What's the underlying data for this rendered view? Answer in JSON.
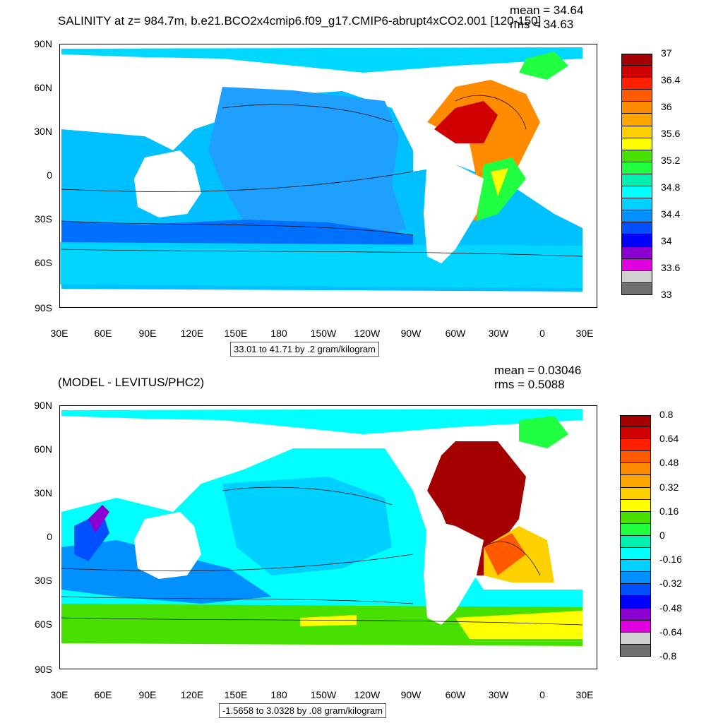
{
  "top": {
    "title": "SALINITY at z= 984.7m, b.e21.BCO2x4cmip6.f09_g17.CMIP6-abrupt4xCO2.001 [120-150]",
    "mean": "mean = 34.64",
    "rms": "rms = 34.63",
    "range": "33.01 to 41.71 by .2 gram/kilogram",
    "colorbar": {
      "colors": [
        "#a50000",
        "#d00000",
        "#ff2000",
        "#ff5a00",
        "#ff8c00",
        "#ffa500",
        "#ffd000",
        "#ffff00",
        "#48e000",
        "#20ff40",
        "#00f0b0",
        "#00ffff",
        "#00d0ff",
        "#0090ff",
        "#0050ff",
        "#0000ff",
        "#8b00d0",
        "#e000e0",
        "#d0d0d0",
        "#707070"
      ],
      "labels": [
        "37",
        "36.4",
        "36",
        "35.6",
        "35.2",
        "34.8",
        "34.4",
        "34",
        "33.6",
        "33"
      ]
    }
  },
  "bottom": {
    "title": "(MODEL - LEVITUS/PHC2)",
    "mean": "mean = 0.03046",
    "rms": "rms = 0.5088",
    "range": "-1.5658 to 3.0328 by .08 gram/kilogram",
    "colorbar": {
      "colors": [
        "#a50000",
        "#d00000",
        "#ff2000",
        "#ff5a00",
        "#ff8c00",
        "#ffa500",
        "#ffd000",
        "#ffff00",
        "#48e000",
        "#20ff40",
        "#00f0b0",
        "#00ffff",
        "#00d0ff",
        "#0090ff",
        "#0050ff",
        "#0000ff",
        "#8b00d0",
        "#e000e0",
        "#d0d0d0",
        "#707070"
      ],
      "labels": [
        "0.8",
        "0.64",
        "0.48",
        "0.32",
        "0.16",
        "0",
        "-0.16",
        "-0.32",
        "-0.48",
        "-0.64",
        "-0.8"
      ]
    }
  },
  "axes": {
    "y_labels": [
      "90N",
      "60N",
      "30N",
      "0",
      "30S",
      "60S",
      "90S"
    ],
    "x_labels": [
      "30E",
      "60E",
      "90E",
      "120E",
      "150E",
      "180",
      "150W",
      "120W",
      "90W",
      "60W",
      "30W",
      "0",
      "30E"
    ]
  }
}
